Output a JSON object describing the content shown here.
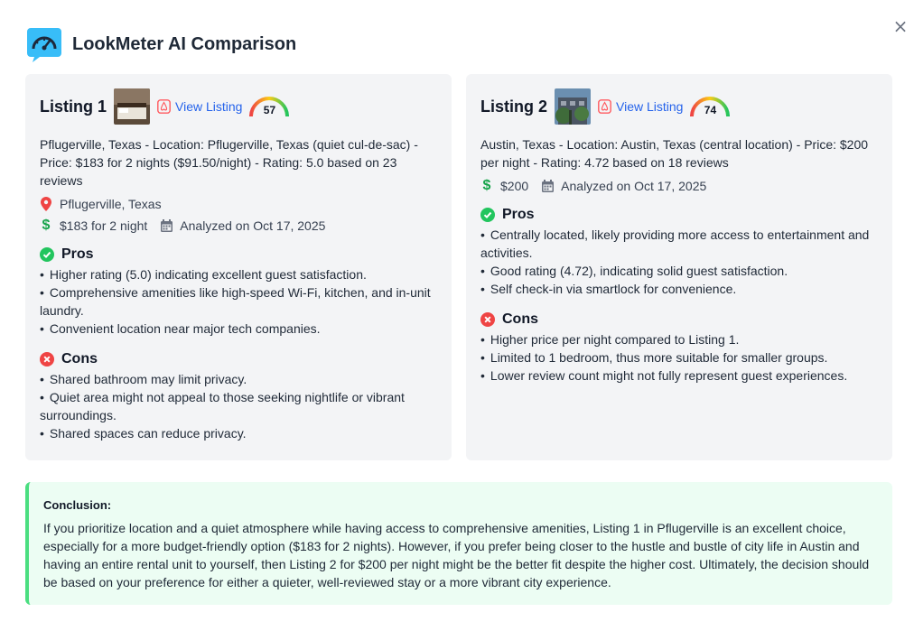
{
  "app": {
    "title": "LookMeter AI Comparison",
    "close_label": "×"
  },
  "listings": [
    {
      "title": "Listing 1",
      "view_label": "View Listing",
      "score": "57",
      "description": "Pflugerville, Texas - Location: Pflugerville, Texas (quiet cul-de-sac) - Price: $183 for 2 nights ($91.50/night) - Rating: 5.0 based on 23 reviews",
      "location": "Pflugerville, Texas",
      "price": "$183 for 2 night",
      "analyzed": "Analyzed on Oct 17, 2025",
      "pros_label": "Pros",
      "pros": [
        "Higher rating (5.0) indicating excellent guest satisfaction.",
        "Comprehensive amenities like high-speed Wi-Fi, kitchen, and in-unit laundry.",
        "Convenient location near major tech companies."
      ],
      "cons_label": "Cons",
      "cons": [
        "Shared bathroom may limit privacy.",
        "Quiet area might not appeal to those seeking nightlife or vibrant surroundings.",
        "Shared spaces can reduce privacy."
      ]
    },
    {
      "title": "Listing 2",
      "view_label": "View Listing",
      "score": "74",
      "description": "Austin, Texas - Location: Austin, Texas (central location) - Price: $200 per night - Rating: 4.72 based on 18 reviews",
      "price": "$200",
      "analyzed": "Analyzed on Oct 17, 2025",
      "pros_label": "Pros",
      "pros": [
        "Centrally located, likely providing more access to entertainment and activities.",
        "Good rating (4.72), indicating solid guest satisfaction.",
        "Self check-in via smartlock for convenience."
      ],
      "cons_label": "Cons",
      "cons": [
        "Higher price per night compared to Listing 1.",
        "Limited to 1 bedroom, thus more suitable for smaller groups.",
        "Lower review count might not fully represent guest experiences."
      ]
    }
  ],
  "conclusion": {
    "label": "Conclusion:",
    "text": "If you prioritize location and a quiet atmosphere while having access to comprehensive amenities, Listing 1 in Pflugerville is an excellent choice, especially for a more budget-friendly option ($183 for 2 nights). However, if you prefer being closer to the hustle and bustle of city life in Austin and having an entire rental unit to yourself, then Listing 2 for $200 per night might be the better fit despite the higher cost. Ultimately, the decision should be based on your preference for either a quieter, well-reviewed stay or a more vibrant city experience."
  },
  "colors": {
    "link": "#2563eb",
    "pros": "#22c55e",
    "cons": "#ef4444",
    "airbnb": "#ff5a5f",
    "conclusion_border": "#4ade80"
  }
}
